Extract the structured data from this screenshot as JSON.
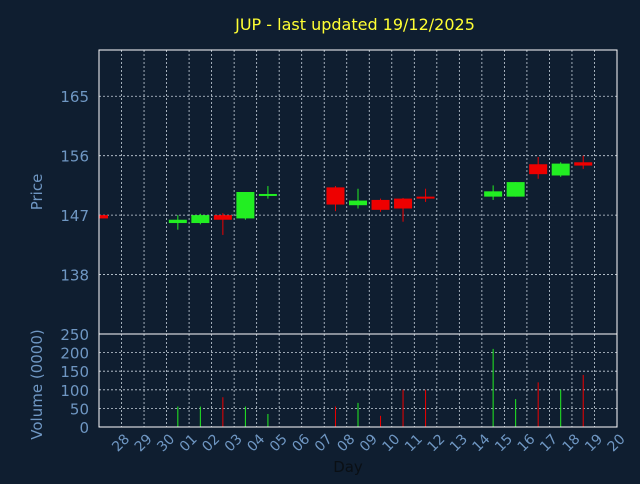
{
  "title": "JUP - last updated 19/12/2025",
  "colors": {
    "background": "#0f1e30",
    "axis": "#ffffff",
    "grid": "#c8d2dc",
    "text": "#6f97c3",
    "title": "#ffff33",
    "up": "#22ee22",
    "down": "#ee0000"
  },
  "chart_data": [
    {
      "type": "candlestick",
      "ylabel": "Price",
      "ylim": [
        129,
        172
      ],
      "yticks": [
        138,
        147,
        156,
        165
      ],
      "grid": true,
      "days": [
        "28",
        "29",
        "30",
        "01",
        "02",
        "03",
        "04",
        "05",
        "06",
        "07",
        "08",
        "09",
        "10",
        "11",
        "12",
        "13",
        "14",
        "15",
        "16",
        "17",
        "18",
        "19",
        "20"
      ],
      "candles": [
        {
          "day": "28",
          "open": 147.0,
          "close": 146.5,
          "high": 147.0,
          "low": 146.5
        },
        {
          "day": "01",
          "open": 145.8,
          "close": 146.3,
          "high": 147.0,
          "low": 144.8
        },
        {
          "day": "02",
          "open": 145.8,
          "close": 147.0,
          "high": 147.2,
          "low": 145.6
        },
        {
          "day": "03",
          "open": 147.0,
          "close": 146.3,
          "high": 147.3,
          "low": 144.0
        },
        {
          "day": "04",
          "open": 146.5,
          "close": 150.5,
          "high": 150.5,
          "low": 146.3
        },
        {
          "day": "05",
          "open": 150.0,
          "close": 150.2,
          "high": 151.4,
          "low": 149.5
        },
        {
          "day": "08",
          "open": 151.2,
          "close": 148.6,
          "high": 151.4,
          "low": 147.6
        },
        {
          "day": "09",
          "open": 148.5,
          "close": 149.2,
          "high": 151.0,
          "low": 148.0
        },
        {
          "day": "10",
          "open": 149.3,
          "close": 147.8,
          "high": 149.5,
          "low": 147.5
        },
        {
          "day": "11",
          "open": 149.5,
          "close": 148.0,
          "high": 149.6,
          "low": 146.0
        },
        {
          "day": "12",
          "open": 149.8,
          "close": 149.5,
          "high": 151.0,
          "low": 149.0
        },
        {
          "day": "15",
          "open": 149.8,
          "close": 150.6,
          "high": 151.5,
          "low": 149.3
        },
        {
          "day": "16",
          "open": 149.8,
          "close": 152.0,
          "high": 152.0,
          "low": 149.8
        },
        {
          "day": "17",
          "open": 154.7,
          "close": 153.2,
          "high": 155.8,
          "low": 152.5
        },
        {
          "day": "18",
          "open": 153.0,
          "close": 154.8,
          "high": 155.0,
          "low": 152.8
        },
        {
          "day": "19",
          "open": 155.0,
          "close": 154.5,
          "high": 156.0,
          "low": 154.0
        }
      ]
    },
    {
      "type": "bar",
      "ylabel": "Volume (0000)",
      "xlabel": "Day",
      "ylim": [
        0,
        250
      ],
      "yticks": [
        0,
        50,
        100,
        150,
        200,
        250
      ],
      "grid": true,
      "bars": [
        {
          "day": "01",
          "value": 55,
          "direction": "up"
        },
        {
          "day": "02",
          "value": 55,
          "direction": "up"
        },
        {
          "day": "03",
          "value": 80,
          "direction": "down"
        },
        {
          "day": "04",
          "value": 55,
          "direction": "up"
        },
        {
          "day": "05",
          "value": 35,
          "direction": "up"
        },
        {
          "day": "08",
          "value": 55,
          "direction": "down"
        },
        {
          "day": "09",
          "value": 65,
          "direction": "up"
        },
        {
          "day": "10",
          "value": 30,
          "direction": "down"
        },
        {
          "day": "11",
          "value": 100,
          "direction": "down"
        },
        {
          "day": "12",
          "value": 100,
          "direction": "down"
        },
        {
          "day": "15",
          "value": 210,
          "direction": "up"
        },
        {
          "day": "16",
          "value": 75,
          "direction": "up"
        },
        {
          "day": "17",
          "value": 120,
          "direction": "down"
        },
        {
          "day": "18",
          "value": 100,
          "direction": "up"
        },
        {
          "day": "19",
          "value": 140,
          "direction": "down"
        }
      ]
    }
  ]
}
